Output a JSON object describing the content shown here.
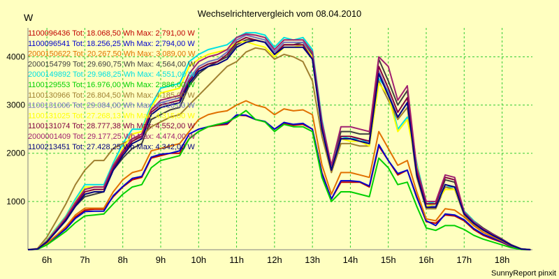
{
  "chart_data": {
    "type": "line",
    "title": "Wechselrichtervergleich vom 08.04.2010",
    "ylabel": "W",
    "xlabel": "",
    "footer": "SunnyReport pinxit",
    "ylim": [
      0,
      4600
    ],
    "yticks": [
      1000,
      2000,
      3000,
      4000
    ],
    "xlim": [
      5.5,
      18.8
    ],
    "xticks": [
      {
        "x": 6,
        "label": "6h"
      },
      {
        "x": 7,
        "label": "7h"
      },
      {
        "x": 8,
        "label": "8h"
      },
      {
        "x": 9,
        "label": "9h"
      },
      {
        "x": 10,
        "label": "10h"
      },
      {
        "x": 11,
        "label": "11h"
      },
      {
        "x": 12,
        "label": "12h"
      },
      {
        "x": 13,
        "label": "13h"
      },
      {
        "x": 14,
        "label": "14h"
      },
      {
        "x": 15,
        "label": "15h"
      },
      {
        "x": 16,
        "label": "16h"
      },
      {
        "x": 17,
        "label": "17h"
      },
      {
        "x": 18,
        "label": "18h"
      }
    ],
    "grid": true,
    "legend_position": "top-left",
    "x": [
      5.5,
      5.75,
      6.0,
      6.25,
      6.5,
      6.75,
      7.0,
      7.25,
      7.5,
      7.75,
      8.0,
      8.25,
      8.5,
      8.75,
      9.0,
      9.25,
      9.5,
      9.75,
      10.0,
      10.25,
      10.5,
      10.75,
      11.0,
      11.25,
      11.5,
      11.75,
      12.0,
      12.25,
      12.5,
      12.75,
      13.0,
      13.25,
      13.5,
      13.75,
      14.0,
      14.25,
      14.5,
      14.75,
      15.0,
      15.25,
      15.5,
      15.75,
      16.0,
      16.25,
      16.5,
      16.75,
      17.0,
      17.25,
      17.5,
      17.75,
      18.0,
      18.25,
      18.5,
      18.75
    ],
    "series": [
      {
        "name": "1100096436 Tot: 18.068,50 Wh Max: 2.791,00 W",
        "color": "#c00000",
        "values": [
          0,
          10,
          120,
          280,
          450,
          680,
          820,
          840,
          840,
          1100,
          1300,
          1450,
          1500,
          1900,
          1950,
          2000,
          2000,
          2300,
          2450,
          2550,
          2580,
          2600,
          2790,
          2780,
          2700,
          2650,
          2500,
          2620,
          2580,
          2600,
          2500,
          1600,
          1050,
          1400,
          1400,
          1400,
          1300,
          2150,
          1850,
          1550,
          1650,
          1100,
          580,
          550,
          720,
          700,
          600,
          420,
          300,
          220,
          150,
          60,
          10,
          0
        ]
      },
      {
        "name": "1100096541 Tot: 18.256,25 Wh Max: 2.794,00 W",
        "color": "#0000cc",
        "values": [
          0,
          10,
          110,
          270,
          430,
          650,
          790,
          800,
          800,
          1120,
          1310,
          1480,
          1520,
          1920,
          1980,
          2000,
          2050,
          2400,
          2500,
          2550,
          2600,
          2620,
          2794,
          2790,
          2700,
          2660,
          2500,
          2640,
          2600,
          2620,
          2500,
          1580,
          1050,
          1430,
          1430,
          1410,
          1320,
          2180,
          1850,
          1580,
          1650,
          1080,
          600,
          500,
          740,
          720,
          620,
          440,
          320,
          240,
          160,
          70,
          15,
          0
        ]
      },
      {
        "name": "2000150622 Tot: 20.267,50 Wh Max: 3.089,00 W",
        "color": "#e07000",
        "values": [
          0,
          12,
          130,
          300,
          480,
          720,
          860,
          860,
          860,
          1200,
          1450,
          1600,
          1650,
          2050,
          2100,
          2150,
          2200,
          2450,
          2700,
          2800,
          2850,
          2880,
          3000,
          3089,
          3000,
          2950,
          2800,
          2920,
          2880,
          2900,
          2800,
          1760,
          1150,
          1600,
          1600,
          1550,
          1500,
          2450,
          2100,
          1750,
          1850,
          1200,
          640,
          600,
          850,
          820,
          680,
          500,
          360,
          270,
          180,
          80,
          15,
          0
        ]
      },
      {
        "name": "2000154799 Tot: 29.690,75 Wh Max: 4.564,00 W",
        "color": "#404040",
        "values": [
          0,
          15,
          160,
          380,
          600,
          900,
          1100,
          1150,
          1200,
          1650,
          1900,
          2100,
          2200,
          2700,
          2800,
          2900,
          2950,
          3400,
          3650,
          3800,
          3900,
          4000,
          4250,
          4350,
          4350,
          4300,
          4050,
          4250,
          4250,
          4300,
          4050,
          2600,
          1700,
          2450,
          2450,
          2400,
          2400,
          3950,
          3500,
          3000,
          3300,
          1700,
          950,
          950,
          1450,
          1400,
          800,
          600,
          450,
          330,
          220,
          100,
          20,
          0
        ]
      },
      {
        "name": "2000149892 Tot: 29.968,25 Wh Max: 4.551,00 W",
        "color": "#00e0e0",
        "values": [
          0,
          20,
          200,
          450,
          700,
          1050,
          1350,
          1350,
          1350,
          1800,
          2200,
          2500,
          2500,
          3000,
          3350,
          3400,
          3450,
          3900,
          4050,
          4150,
          4200,
          4250,
          4400,
          4500,
          4500,
          4450,
          4200,
          4400,
          4350,
          4400,
          4150,
          2700,
          1700,
          2350,
          2300,
          2300,
          2200,
          3550,
          3300,
          2500,
          2750,
          1800,
          950,
          1000,
          1300,
          1300,
          800,
          600,
          420,
          300,
          200,
          90,
          15,
          0
        ]
      },
      {
        "name": "1100129553 Tot: 16.976,00 Wh Max: 2.886,00 W",
        "color": "#00d000",
        "values": [
          0,
          8,
          100,
          240,
          380,
          560,
          700,
          720,
          740,
          950,
          1150,
          1300,
          1350,
          1700,
          1850,
          1900,
          1950,
          2300,
          2450,
          2550,
          2600,
          2650,
          2750,
          2886,
          2700,
          2650,
          2450,
          2600,
          2550,
          2550,
          2450,
          1500,
          1000,
          1200,
          1200,
          1150,
          1100,
          1900,
          1700,
          1350,
          1400,
          900,
          450,
          400,
          500,
          500,
          420,
          300,
          220,
          160,
          100,
          40,
          5,
          0
        ]
      },
      {
        "name": "1100130966 Tot: 26.804,50 Wh Max: 4.185,00 W",
        "color": "#a08030",
        "values": [
          0,
          25,
          260,
          600,
          950,
          1350,
          1650,
          1850,
          1850,
          2100,
          2200,
          2300,
          2350,
          2550,
          2650,
          2750,
          2800,
          3000,
          3200,
          3400,
          3600,
          3800,
          3900,
          4100,
          4185,
          4150,
          3950,
          4050,
          4000,
          3900,
          3500,
          2350,
          1600,
          2200,
          2200,
          2150,
          2150,
          3500,
          3100,
          2700,
          2950,
          1500,
          850,
          850,
          1300,
          1250,
          720,
          530,
          400,
          300,
          200,
          90,
          15,
          0
        ]
      },
      {
        "name": "1100131006 Tot: 29.084,00 Wh Max: 4.516,00 W",
        "color": "#7070c0",
        "values": [
          0,
          15,
          170,
          400,
          650,
          950,
          1250,
          1300,
          1300,
          1750,
          2050,
          2300,
          2400,
          2900,
          3050,
          3100,
          3150,
          3550,
          3800,
          3900,
          3950,
          4100,
          4350,
          4450,
          4400,
          4350,
          4100,
          4300,
          4300,
          4300,
          4000,
          2600,
          1650,
          2350,
          2350,
          2300,
          2250,
          3700,
          3250,
          2750,
          3050,
          1600,
          900,
          900,
          1350,
          1300,
          750,
          560,
          420,
          310,
          200,
          90,
          15,
          0
        ]
      },
      {
        "name": "1100131025 Tot: 27.268,13 Wh Max: 4.315,00 W",
        "color": "#ffff00",
        "values": [
          0,
          18,
          190,
          430,
          680,
          1000,
          1300,
          1300,
          1300,
          1750,
          2100,
          2400,
          2450,
          2950,
          3250,
          3300,
          3350,
          3800,
          3950,
          4050,
          4100,
          4150,
          4300,
          4315,
          4250,
          4200,
          4000,
          4200,
          4200,
          4250,
          4000,
          2600,
          1650,
          2300,
          2250,
          2250,
          2150,
          3450,
          3200,
          2450,
          2700,
          1750,
          900,
          950,
          1250,
          1250,
          780,
          580,
          410,
          300,
          200,
          90,
          15,
          0
        ]
      },
      {
        "name": "1100131074 Tot: 28.777,38 Wh Max: 4.552,00 W",
        "color": "#800040",
        "values": [
          0,
          15,
          170,
          400,
          640,
          940,
          1200,
          1250,
          1250,
          1700,
          2000,
          2250,
          2350,
          2850,
          3000,
          3050,
          3100,
          3500,
          3750,
          3850,
          3900,
          4050,
          4300,
          4400,
          4350,
          4300,
          4050,
          4250,
          4250,
          4250,
          3950,
          2550,
          1650,
          2350,
          2350,
          2300,
          2250,
          3800,
          3350,
          2850,
          3150,
          1650,
          950,
          950,
          1500,
          1450,
          760,
          560,
          420,
          310,
          200,
          90,
          15,
          0
        ]
      },
      {
        "name": "2000001409 Tot: 29.177,25 Wh Max: 4.474,00 W",
        "color": "#a02070",
        "values": [
          0,
          16,
          180,
          420,
          670,
          980,
          1250,
          1300,
          1300,
          1750,
          2050,
          2300,
          2400,
          2900,
          3100,
          3150,
          3200,
          3650,
          3900,
          4000,
          4050,
          4150,
          4400,
          4474,
          4450,
          4400,
          4150,
          4350,
          4350,
          4350,
          4100,
          2650,
          1750,
          2550,
          2550,
          2500,
          2450,
          4000,
          3800,
          3100,
          3400,
          1700,
          1000,
          1000,
          1550,
          1500,
          780,
          580,
          430,
          320,
          210,
          95,
          15,
          0
        ]
      },
      {
        "name": "1100213451 Tot: 27.428,25 Wh Max: 4.342,00 W",
        "color": "#000080",
        "values": [
          0,
          15,
          160,
          380,
          610,
          900,
          1150,
          1200,
          1200,
          1650,
          1950,
          2200,
          2300,
          2800,
          2950,
          3000,
          3050,
          3450,
          3700,
          3800,
          3850,
          3950,
          4200,
          4300,
          4342,
          4300,
          4050,
          4200,
          4200,
          4200,
          3950,
          2500,
          1650,
          2300,
          2300,
          2250,
          2200,
          3650,
          3200,
          2750,
          3050,
          1550,
          880,
          880,
          1350,
          1300,
          740,
          550,
          410,
          300,
          200,
          90,
          15,
          0
        ]
      }
    ]
  }
}
